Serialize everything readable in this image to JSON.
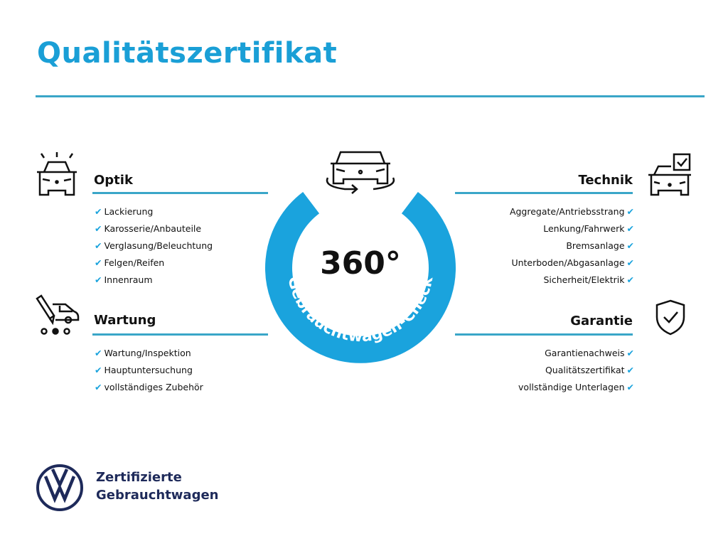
{
  "title": "Qualitätszertifikat",
  "colors": {
    "accent": "#1aa3dd",
    "rule": "#3aa6c8",
    "brand": "#1e2a5a"
  },
  "center": {
    "value": "360°",
    "ring_text": "Gebrauchtwagen-Check",
    "icon": "car-rotate-icon"
  },
  "sections": {
    "optik": {
      "heading": "Optik",
      "icon": "car-lights-icon",
      "items": [
        "Lackierung",
        "Karosserie/Anbauteile",
        "Verglasung/Beleuchtung",
        "Felgen/Reifen",
        "Innenraum"
      ]
    },
    "wartung": {
      "heading": "Wartung",
      "icon": "car-service-icon",
      "items": [
        "Wartung/Inspektion",
        "Hauptuntersuchung",
        "vollständiges Zubehör"
      ]
    },
    "technik": {
      "heading": "Technik",
      "icon": "car-checklist-icon",
      "items": [
        "Aggregate/Antriebsstrang",
        "Lenkung/Fahrwerk",
        "Bremsanlage",
        "Unterboden/Abgasanlage",
        "Sicherheit/Elektrik"
      ]
    },
    "garantie": {
      "heading": "Garantie",
      "icon": "shield-check-icon",
      "items": [
        "Garantienachweis",
        "Qualitätszertifikat",
        "vollständige Unterlagen"
      ]
    }
  },
  "check_mark": "✔",
  "brand": {
    "line1": "Zertifizierte",
    "line2": "Gebrauchtwagen",
    "logo": "vw-logo"
  }
}
